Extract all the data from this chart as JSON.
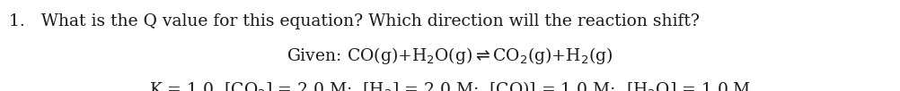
{
  "background_color": "#ffffff",
  "line1": "1.   What is the Q value for this equation? Which direction will the reaction shift?",
  "font_size_main": 13.5,
  "text_color": "#1a1a1a"
}
